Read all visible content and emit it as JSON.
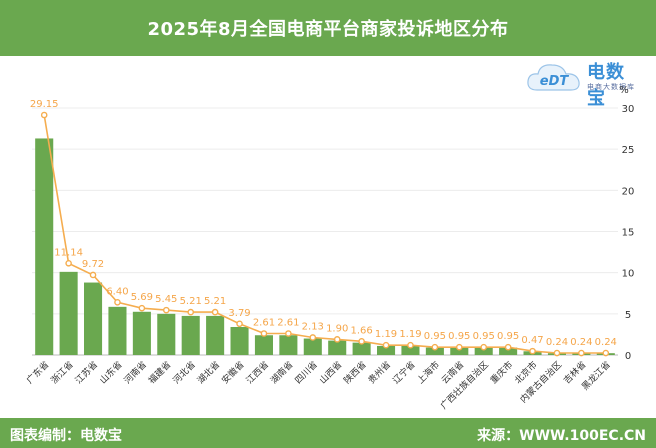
{
  "title": "2025年8月全国电商平台商家投诉地区分布",
  "footer": {
    "left": "图表编制：电数宝",
    "right": "来源：WWW.100EC.CN"
  },
  "logo": {
    "mark": "eDT",
    "name": "电数宝",
    "sub": "电商大数据库",
    "icon": "cloud-logo-icon"
  },
  "colors": {
    "header": "#6aa84f",
    "bar": "#6aa84f",
    "line": "#f5ad4f",
    "label": "#f5a64a"
  },
  "chart_data": {
    "type": "bar",
    "unit_label": "%",
    "ylim": [
      0,
      30
    ],
    "yticks": [
      0,
      5,
      10,
      15,
      20,
      25,
      30
    ],
    "grid": true,
    "categories": [
      "广东省",
      "浙江省",
      "江苏省",
      "山东省",
      "河南省",
      "福建省",
      "河北省",
      "湖北省",
      "安徽省",
      "江西省",
      "湖南省",
      "四川省",
      "山西省",
      "陕西省",
      "贵州省",
      "辽宁省",
      "上海市",
      "云南省",
      "广西壮族自治区",
      "重庆市",
      "北京市",
      "内蒙古自治区",
      "吉林省",
      "黑龙江省"
    ],
    "series": [
      {
        "kind": "bar",
        "values": [
          26.3,
          10.1,
          8.8,
          5.85,
          5.25,
          5.0,
          4.75,
          4.75,
          3.4,
          2.4,
          2.4,
          2.0,
          1.75,
          1.5,
          1.1,
          1.1,
          0.9,
          0.9,
          0.9,
          0.9,
          0.45,
          0.22,
          0.22,
          0.22
        ]
      },
      {
        "kind": "line",
        "values": [
          29.15,
          11.14,
          9.72,
          6.4,
          5.69,
          5.45,
          5.21,
          5.21,
          3.79,
          2.61,
          2.61,
          2.13,
          1.9,
          1.66,
          1.19,
          1.19,
          0.95,
          0.95,
          0.95,
          0.95,
          0.47,
          0.24,
          0.24,
          0.24
        ]
      }
    ],
    "value_labels": [
      "29.15",
      "11.14",
      "9.72",
      "6.40",
      "5.69",
      "5.45",
      "5.21",
      "5.21",
      "3.79",
      "2.61",
      "2.61",
      "2.13",
      "1.90",
      "1.66",
      "1.19",
      "1.19",
      "0.95",
      "0.95",
      "0.95",
      "0.95",
      "0.47",
      "0.24",
      "0.24",
      "0.24"
    ]
  }
}
